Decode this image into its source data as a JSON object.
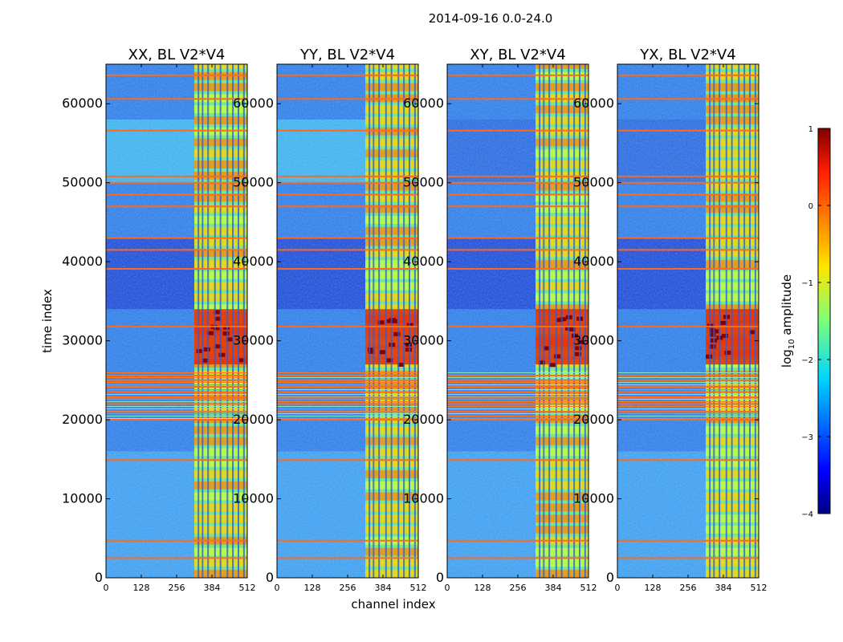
{
  "figure": {
    "suptitle": "2014-09-16 0.0-24.0"
  },
  "chart_data": {
    "type": "heatmap",
    "title": "2014-09-16 0.0-24.0",
    "xlabel": "channel index",
    "ylabel": "time index",
    "xlim": [
      0,
      512
    ],
    "ylim": [
      0,
      65000
    ],
    "x_ticks": [
      "0",
      "128",
      "256",
      "384",
      "512"
    ],
    "y_ticks": [
      "0",
      "10000",
      "20000",
      "30000",
      "40000",
      "50000",
      "60000"
    ],
    "panels": [
      {
        "title": "XX, BL V2*V4",
        "pol": "XX"
      },
      {
        "title": "YY, BL V2*V4",
        "pol": "YY"
      },
      {
        "title": "XY, BL V2*V4",
        "pol": "XY"
      },
      {
        "title": "YX, BL V2*V4",
        "pol": "YX"
      }
    ],
    "colorbar": {
      "label_prefix": "log",
      "label_sub": "10",
      "label_suffix": " amplitude",
      "range": [
        -4,
        1
      ],
      "ticks": [
        "1",
        "0",
        "−1",
        "−2",
        "−3",
        "−4"
      ],
      "colormap": "jet"
    },
    "features": {
      "flagged_rows_time_index": [
        2500,
        4700,
        14900,
        20000,
        21000,
        22000,
        22800,
        23500,
        24200,
        25000,
        25600,
        31800,
        39100,
        41500,
        43000,
        47000,
        48500,
        50000,
        50800,
        56600,
        60600,
        63600
      ],
      "flagged_band_time_index": [
        20000,
        26000
      ],
      "bright_channel_columns": [
        335,
        350,
        370,
        395,
        415,
        440,
        460,
        480,
        500
      ],
      "bright_channel_band": [
        320,
        512
      ],
      "strong_emission_time_index": [
        27000,
        34000
      ]
    }
  }
}
